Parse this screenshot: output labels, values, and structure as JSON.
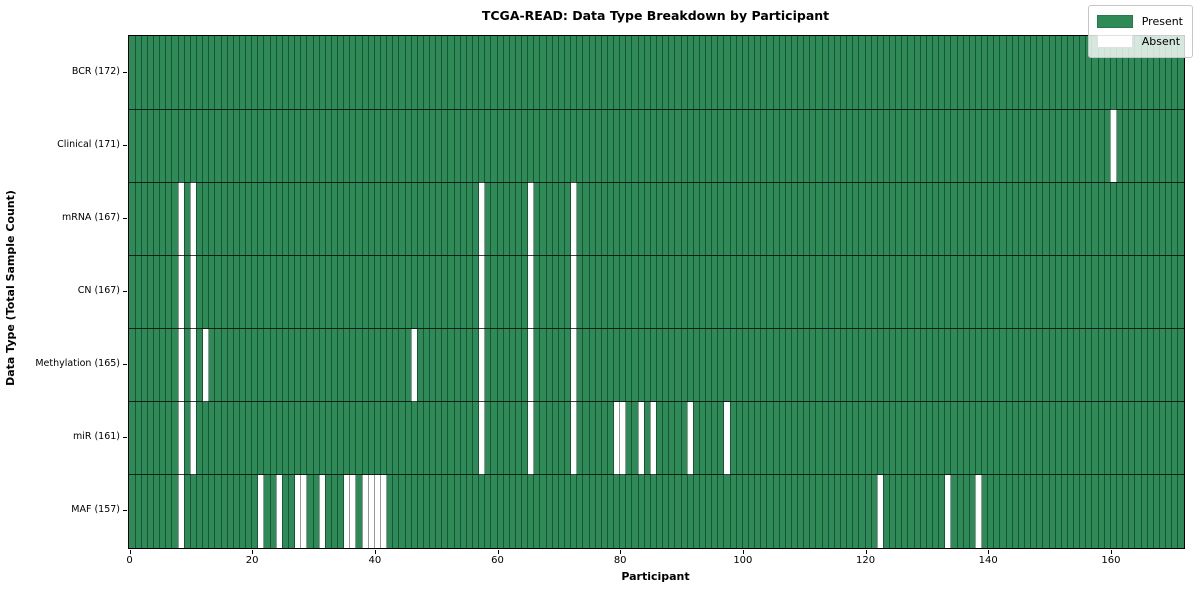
{
  "title": "TCGA-READ: Data Type Breakdown by Participant",
  "chart_data": {
    "type": "heatmap",
    "title": "TCGA-READ: Data Type Breakdown by Participant",
    "xlabel": "Participant",
    "ylabel": "Data Type (Total Sample Count)",
    "n_participants": 172,
    "xlim": [
      0,
      172
    ],
    "x_ticks": [
      0,
      20,
      40,
      60,
      80,
      100,
      120,
      140,
      160
    ],
    "grid": "vertical line per participant, horizontal line per row boundary",
    "legend_position": "upper right",
    "legend": [
      {
        "label": "Present",
        "color": "#2e8b57"
      },
      {
        "label": "Absent",
        "color": "#ffffff"
      }
    ],
    "colors": {
      "present": "#2e8b57",
      "absent": "#ffffff",
      "vgrid": "rgba(0,0,0,0.4)",
      "hsep": "rgba(0,0,0,0.75)"
    },
    "rows": [
      {
        "label": "BCR (172)",
        "data_type": "BCR",
        "total_samples": 172,
        "absent_participants": []
      },
      {
        "label": "Clinical (171)",
        "data_type": "Clinical",
        "total_samples": 171,
        "absent_participants": [
          160
        ]
      },
      {
        "label": "mRNA (167)",
        "data_type": "mRNA",
        "total_samples": 167,
        "absent_participants": [
          8,
          10,
          57,
          65,
          72
        ]
      },
      {
        "label": "CN (167)",
        "data_type": "CN",
        "total_samples": 167,
        "absent_participants": [
          8,
          10,
          57,
          65,
          72
        ]
      },
      {
        "label": "Methylation (165)",
        "data_type": "Methylation",
        "total_samples": 165,
        "absent_participants": [
          8,
          10,
          12,
          46,
          57,
          65,
          72
        ]
      },
      {
        "label": "miR (161)",
        "data_type": "miR",
        "total_samples": 161,
        "absent_participants": [
          8,
          10,
          57,
          65,
          72,
          79,
          80,
          83,
          85,
          91,
          97
        ]
      },
      {
        "label": "MAF (157)",
        "data_type": "MAF",
        "total_samples": 157,
        "absent_participants": [
          8,
          21,
          24,
          27,
          28,
          31,
          35,
          36,
          38,
          39,
          40,
          41,
          122,
          133,
          138
        ]
      }
    ]
  }
}
